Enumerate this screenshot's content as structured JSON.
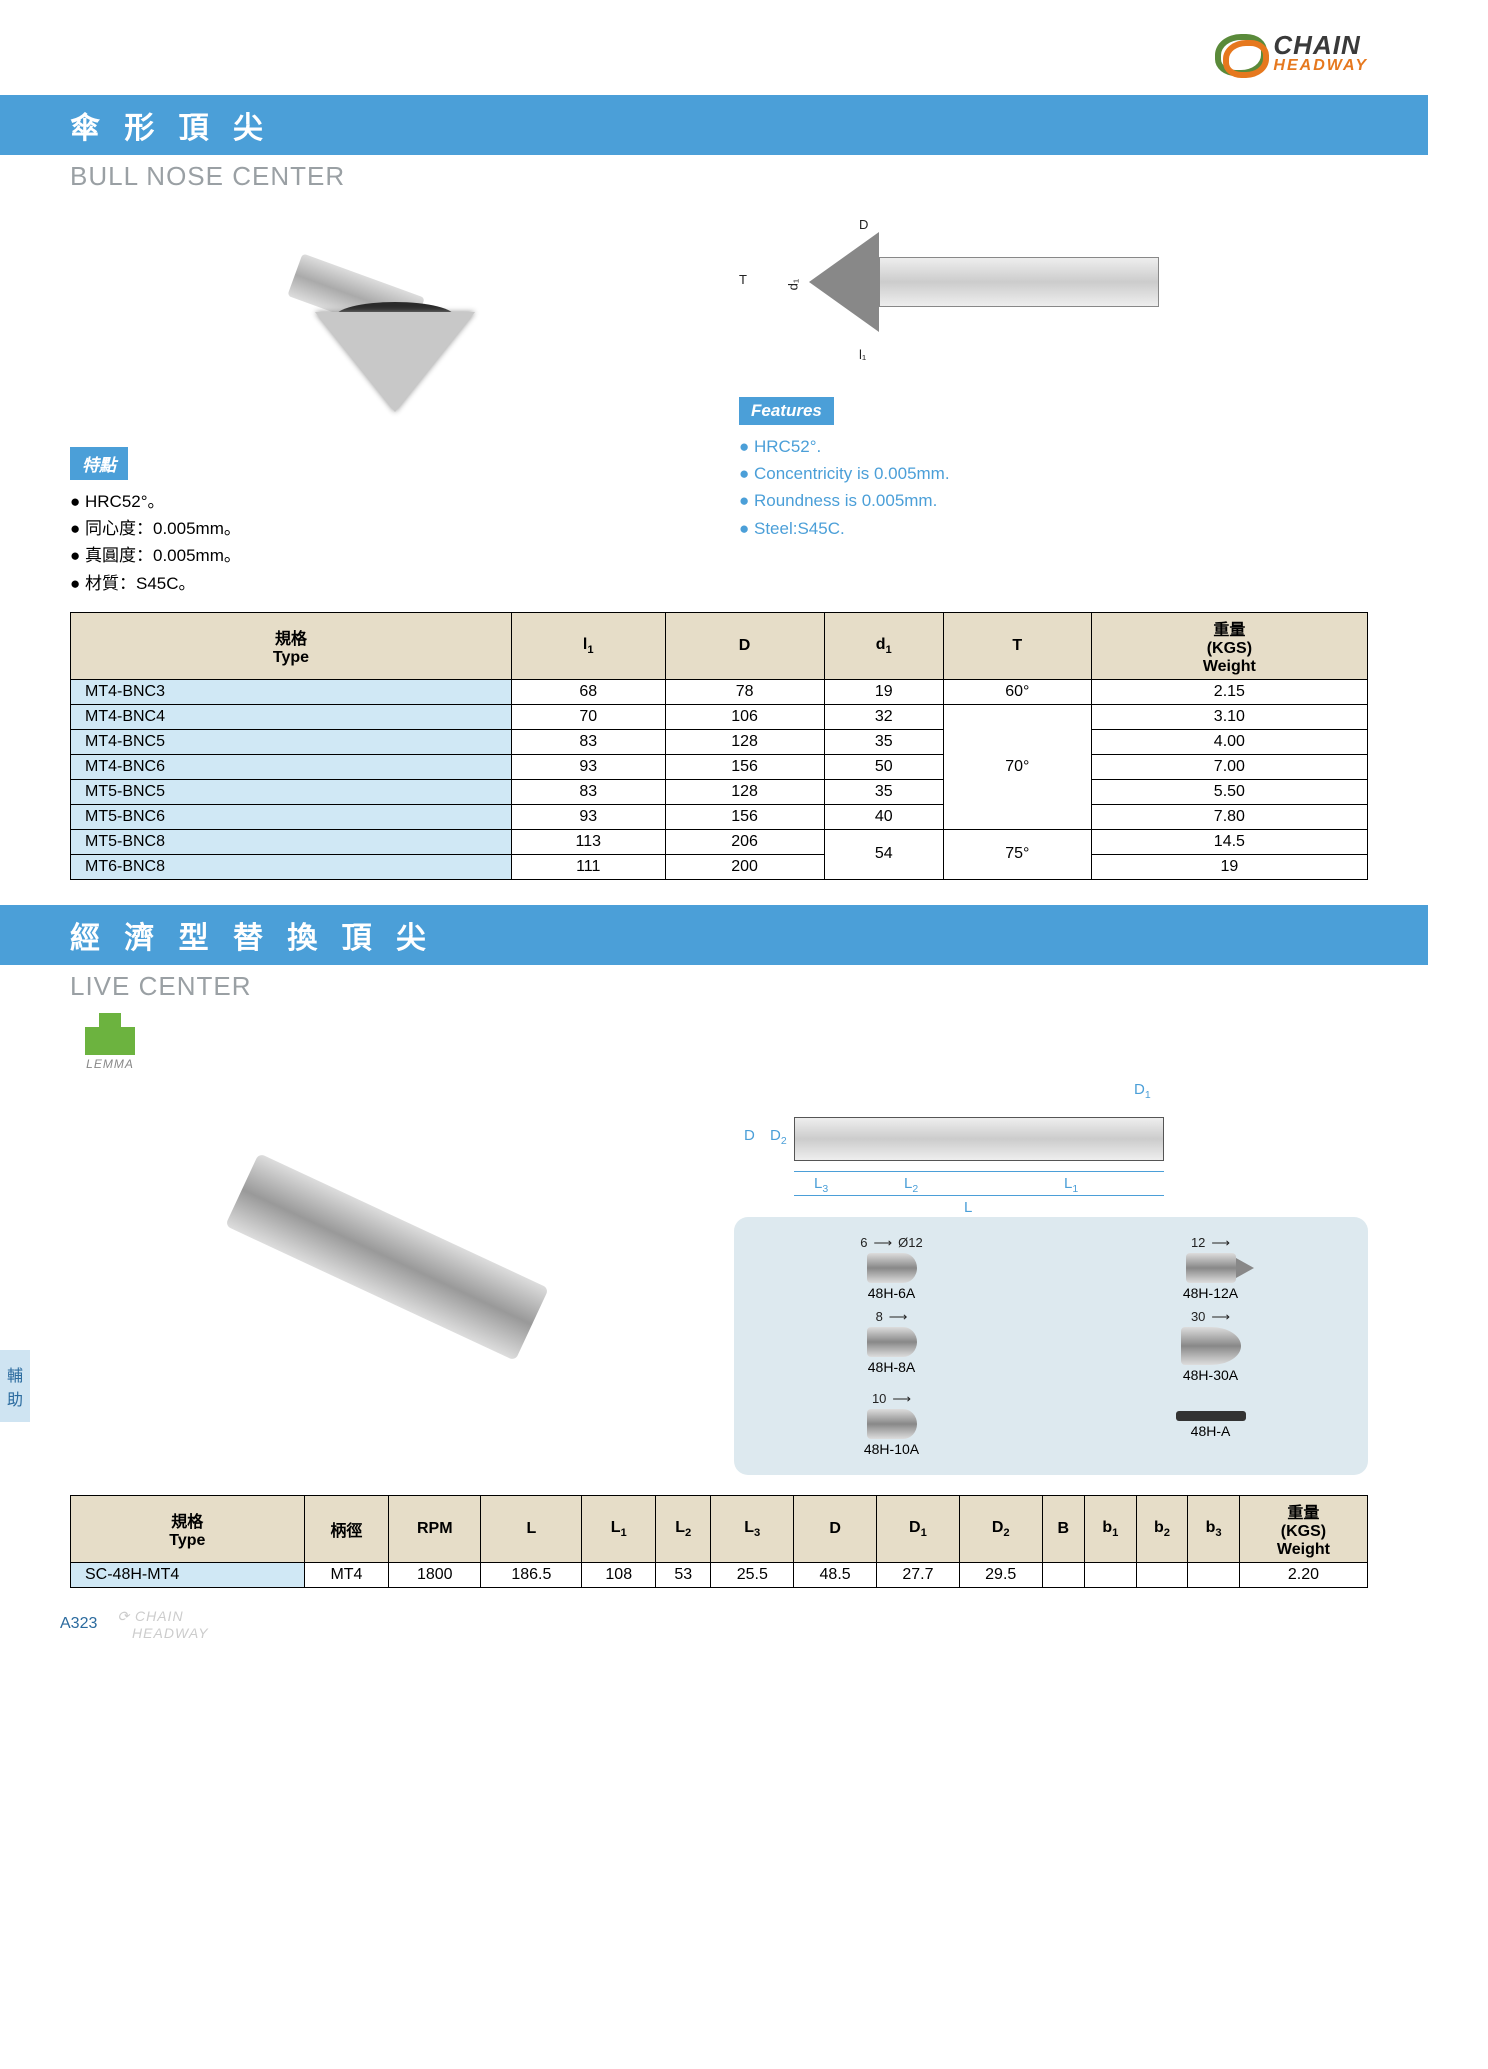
{
  "brand": {
    "line1": "CHAIN",
    "line2": "HEADWAY"
  },
  "section1": {
    "title_cn": "傘 形 頂 尖",
    "title_en": "BULL NOSE CENTER",
    "features_label_cn": "特點",
    "features_label_en": "Features",
    "features_cn": [
      "HRC52°。",
      "同心度：0.005mm。",
      "真圓度：0.005mm。",
      "材質：S45C。"
    ],
    "features_en": [
      "HRC52°.",
      "Concentricity is 0.005mm.",
      "Roundness is 0.005mm.",
      "Steel:S45C."
    ],
    "table": {
      "columns": [
        {
          "cn": "規格",
          "en": "Type",
          "key": "type"
        },
        {
          "label": "l₁",
          "key": "l1"
        },
        {
          "label": "D",
          "key": "D"
        },
        {
          "label": "d₁",
          "key": "d1"
        },
        {
          "label": "T",
          "key": "T"
        },
        {
          "cn": "重量",
          "en": "(KGS)\nWeight",
          "key": "w"
        }
      ],
      "header_bg": "#e6ddc8",
      "type_bg": "#d0e8f5",
      "rows": [
        {
          "type": "MT4-BNC3",
          "l1": "68",
          "D": "78",
          "d1": "19",
          "T": "60°",
          "w": "2.15"
        },
        {
          "type": "MT4-BNC4",
          "l1": "70",
          "D": "106",
          "d1": "32",
          "T": "70°",
          "w": "3.10",
          "T_rowspan": 5
        },
        {
          "type": "MT4-BNC5",
          "l1": "83",
          "D": "128",
          "d1": "35",
          "w": "4.00"
        },
        {
          "type": "MT4-BNC6",
          "l1": "93",
          "D": "156",
          "d1": "50",
          "w": "7.00"
        },
        {
          "type": "MT5-BNC5",
          "l1": "83",
          "D": "128",
          "d1": "35",
          "w": "5.50"
        },
        {
          "type": "MT5-BNC6",
          "l1": "93",
          "D": "156",
          "d1": "40",
          "w": "7.80"
        },
        {
          "type": "MT5-BNC8",
          "l1": "113",
          "D": "206",
          "d1": "54",
          "T": "75°",
          "w": "14.5",
          "d1_rowspan": 2,
          "T_rowspan": 2
        },
        {
          "type": "MT6-BNC8",
          "l1": "111",
          "D": "200",
          "w": "19"
        }
      ]
    }
  },
  "section2": {
    "title_cn": "經 濟 型 替 換 頂 尖",
    "title_en": "LIVE CENTER",
    "sub_brand": "LEMMA",
    "schematic_labels": {
      "D": "D",
      "D1": "D₁",
      "D2": "D₂",
      "L": "L",
      "L1": "L₁",
      "L2": "L₂",
      "L3": "L₃"
    },
    "tips_heading_diameter": "Ø12",
    "tips": [
      {
        "dim": "6",
        "label": "48H-6A"
      },
      {
        "dim": "12",
        "label": "48H-12A"
      },
      {
        "dim": "8",
        "label": "48H-8A"
      },
      {
        "dim": "30",
        "label": "48H-30A"
      },
      {
        "dim": "10",
        "label": "48H-10A"
      },
      {
        "dim": "",
        "label": "48H-A"
      }
    ],
    "table": {
      "columns": [
        {
          "cn": "規格",
          "en": "Type"
        },
        {
          "label": "柄徑"
        },
        {
          "label": "RPM"
        },
        {
          "label": "L"
        },
        {
          "label": "L₁"
        },
        {
          "label": "L₂"
        },
        {
          "label": "L₃"
        },
        {
          "label": "D"
        },
        {
          "label": "D₁"
        },
        {
          "label": "D₂"
        },
        {
          "label": "B"
        },
        {
          "label": "b₁"
        },
        {
          "label": "b₂"
        },
        {
          "label": "b₃"
        },
        {
          "cn": "重量",
          "en": "(KGS)\nWeight"
        }
      ],
      "row": {
        "type": "SC-48H-MT4",
        "shank": "MT4",
        "rpm": "1800",
        "L": "186.5",
        "L1": "108",
        "L2": "53",
        "L3": "25.5",
        "D": "48.5",
        "D1": "27.7",
        "D2": "29.5",
        "B": "",
        "b1": "",
        "b2": "",
        "b3": "",
        "w": "2.20"
      }
    }
  },
  "side_tab": [
    "輔",
    "助"
  ],
  "page_number": "A323",
  "colors": {
    "band": "#4b9fd8",
    "header_bg": "#e6ddc8",
    "type_bg": "#d0e8f5",
    "feature_en": "#4b9fd8",
    "tips_bg": "#dde9ef"
  }
}
